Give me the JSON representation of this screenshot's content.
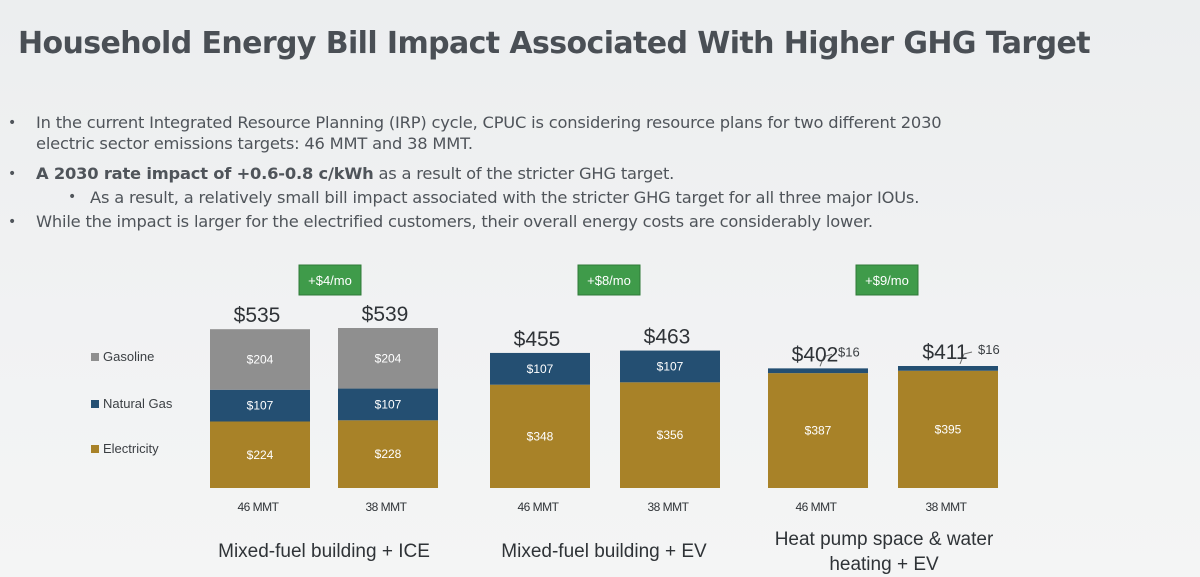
{
  "slide": {
    "title": "Household Energy Bill Impact Associated With Higher GHG Target",
    "bullets": [
      {
        "level": 1,
        "text": "In the current Integrated Resource Planning (IRP) cycle, CPUC is considering resource plans for two different 2030"
      },
      {
        "level": 1,
        "text": "electric sector emissions targets: 46 MMT and 38 MMT.",
        "continuation": true
      },
      {
        "level": 1,
        "bold": "A 2030 rate impact of +0.6-0.8 c/kWh",
        "text": " as a result of the stricter GHG target."
      },
      {
        "level": 2,
        "text": "As a result, a relatively small bill impact associated with the stricter GHG target for all three major IOUs."
      },
      {
        "level": 1,
        "text": "While the impact is larger for the electrified customers, their overall energy costs are considerably lower."
      }
    ]
  },
  "chart_data": {
    "type": "bar",
    "stacked": true,
    "colors": {
      "Electricity": "#a88228",
      "Natural Gas": "#244f72",
      "Gasoline": "#8f8f8f",
      "badge": "#3f9b4a"
    },
    "legend": {
      "position": "left",
      "entries": [
        "Gasoline",
        "Natural Gas",
        "Electricity"
      ]
    },
    "groups": [
      {
        "label": "Mixed-fuel building + ICE",
        "delta": "+$4/mo",
        "bars": [
          {
            "category": "46 MMT",
            "total": "$535",
            "segments": [
              {
                "name": "Electricity",
                "value": 224,
                "label": "$224"
              },
              {
                "name": "Natural Gas",
                "value": 107,
                "label": "$107"
              },
              {
                "name": "Gasoline",
                "value": 204,
                "label": "$204"
              }
            ]
          },
          {
            "category": "38 MMT",
            "total": "$539",
            "segments": [
              {
                "name": "Electricity",
                "value": 228,
                "label": "$228"
              },
              {
                "name": "Natural Gas",
                "value": 107,
                "label": "$107"
              },
              {
                "name": "Gasoline",
                "value": 204,
                "label": "$204"
              }
            ]
          }
        ]
      },
      {
        "label": "Mixed-fuel building + EV",
        "delta": "+$8/mo",
        "bars": [
          {
            "category": "46 MMT",
            "total": "$455",
            "segments": [
              {
                "name": "Electricity",
                "value": 348,
                "label": "$348"
              },
              {
                "name": "Natural Gas",
                "value": 107,
                "label": "$107"
              }
            ]
          },
          {
            "category": "38 MMT",
            "total": "$463",
            "segments": [
              {
                "name": "Electricity",
                "value": 356,
                "label": "$356"
              },
              {
                "name": "Natural Gas",
                "value": 107,
                "label": "$107"
              }
            ]
          }
        ]
      },
      {
        "label": "Heat pump space & water heating + EV",
        "delta": "+$9/mo",
        "bars": [
          {
            "category": "46 MMT",
            "total": "$402",
            "segments": [
              {
                "name": "Electricity",
                "value": 387,
                "label": "$387"
              },
              {
                "name": "Natural Gas",
                "value": 16,
                "label": "$16",
                "callout": true
              }
            ]
          },
          {
            "category": "38 MMT",
            "total": "$411",
            "segments": [
              {
                "name": "Electricity",
                "value": 395,
                "label": "$395"
              },
              {
                "name": "Natural Gas",
                "value": 16,
                "label": "$16",
                "callout": true
              }
            ]
          }
        ]
      }
    ]
  }
}
